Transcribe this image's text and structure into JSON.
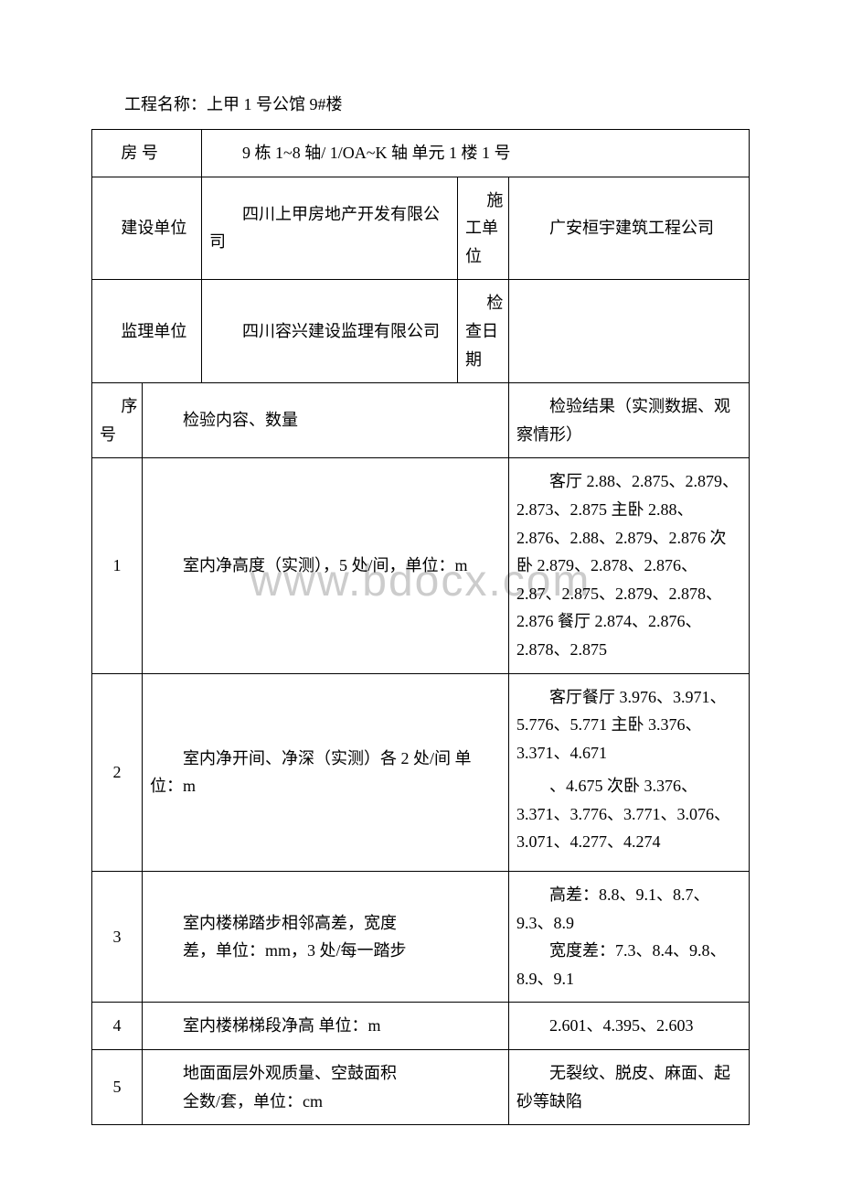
{
  "title": "工程名称：上甲 1 号公馆 9#楼",
  "watermark": "www.bdocx.com",
  "header": {
    "room_number_label": "房 号",
    "room_number_value": "9 栋 1~8 轴/ 1/OA~K 轴 单元 1 楼 1 号",
    "construction_unit_label": "建设单位",
    "construction_unit_value": "四川上甲房地产开发有限公司",
    "contractor_label": "施工单位",
    "contractor_value": "广安桓宇建筑工程公司",
    "supervision_unit_label": "监理单位",
    "supervision_unit_value": "四川容兴建设监理有限公司",
    "inspection_date_label": "检查日期",
    "inspection_date_value": ""
  },
  "table_header": {
    "seq_label": "序号",
    "content_label": "检验内容、数量",
    "result_label": "检验结果（实测数据、观察情形）"
  },
  "rows": {
    "r1": {
      "num": "1",
      "content": "室内净高度（实测），5 处/间，单位：m",
      "result": "客厅 2.88、2.875、2.879、2.873、2.875 主卧 2.88、2.876、2.88、2.879、2.876 次卧 2.879、2.878、2.876、2.87、2.875、2.879、2.878、2.876 餐厅 2.874、2.876、2.878、2.875"
    },
    "r2": {
      "num": "2",
      "content": "室内净开间、净深（实测）各 2 处/间 单位：m",
      "result_p1": "客厅餐厅 3.976、3.971、5.776、5.771 主卧 3.376、3.371、4.671",
      "result_p2": "、4.675 次卧 3.376、3.371、3.776、3.771、3.076、3.071、4.277、4.274"
    },
    "r3": {
      "num": "3",
      "content_l1": "室内楼梯踏步相邻高差，宽度",
      "content_l2": "差，单位：mm，3 处/每一踏步",
      "result_p1": "高差：8.8、9.1、8.7、9.3、8.9",
      "result_p2": "宽度差：7.3、8.4、9.8、8.9、9.1"
    },
    "r4": {
      "num": "4",
      "content": "室内楼梯梯段净高 单位：m",
      "result": "2.601、4.395、2.603"
    },
    "r5": {
      "num": "5",
      "content_l1": "地面面层外观质量、空鼓面积",
      "content_l2": "全数/套，单位：cm",
      "result": "无裂纹、脱皮、麻面、起砂等缺陷"
    }
  }
}
